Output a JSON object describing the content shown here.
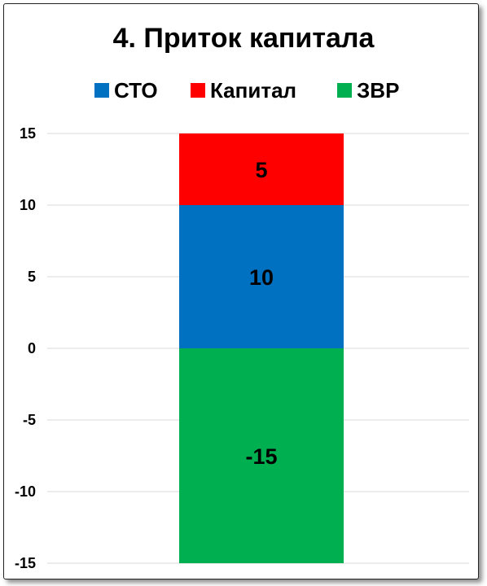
{
  "chart_data": {
    "type": "bar",
    "stacked": true,
    "title": "4. Приток капитала",
    "categories": [
      ""
    ],
    "series": [
      {
        "name": "ЗВР",
        "values": [
          -15
        ],
        "color": "#00B050",
        "data_label": "-15"
      },
      {
        "name": "СТО",
        "values": [
          10
        ],
        "color": "#0070C0",
        "data_label": "10"
      },
      {
        "name": "Капитал",
        "values": [
          5
        ],
        "color": "#FF0000",
        "data_label": "5"
      }
    ],
    "legend": {
      "placement": "top",
      "order": [
        "СТО",
        "Капитал",
        "ЗВР"
      ]
    },
    "ylim": [
      -15,
      15
    ],
    "yticks": [
      "15",
      "10",
      "5",
      "0",
      "-5",
      "-10",
      "-15"
    ],
    "grid": true,
    "xlabel": "",
    "ylabel": ""
  }
}
